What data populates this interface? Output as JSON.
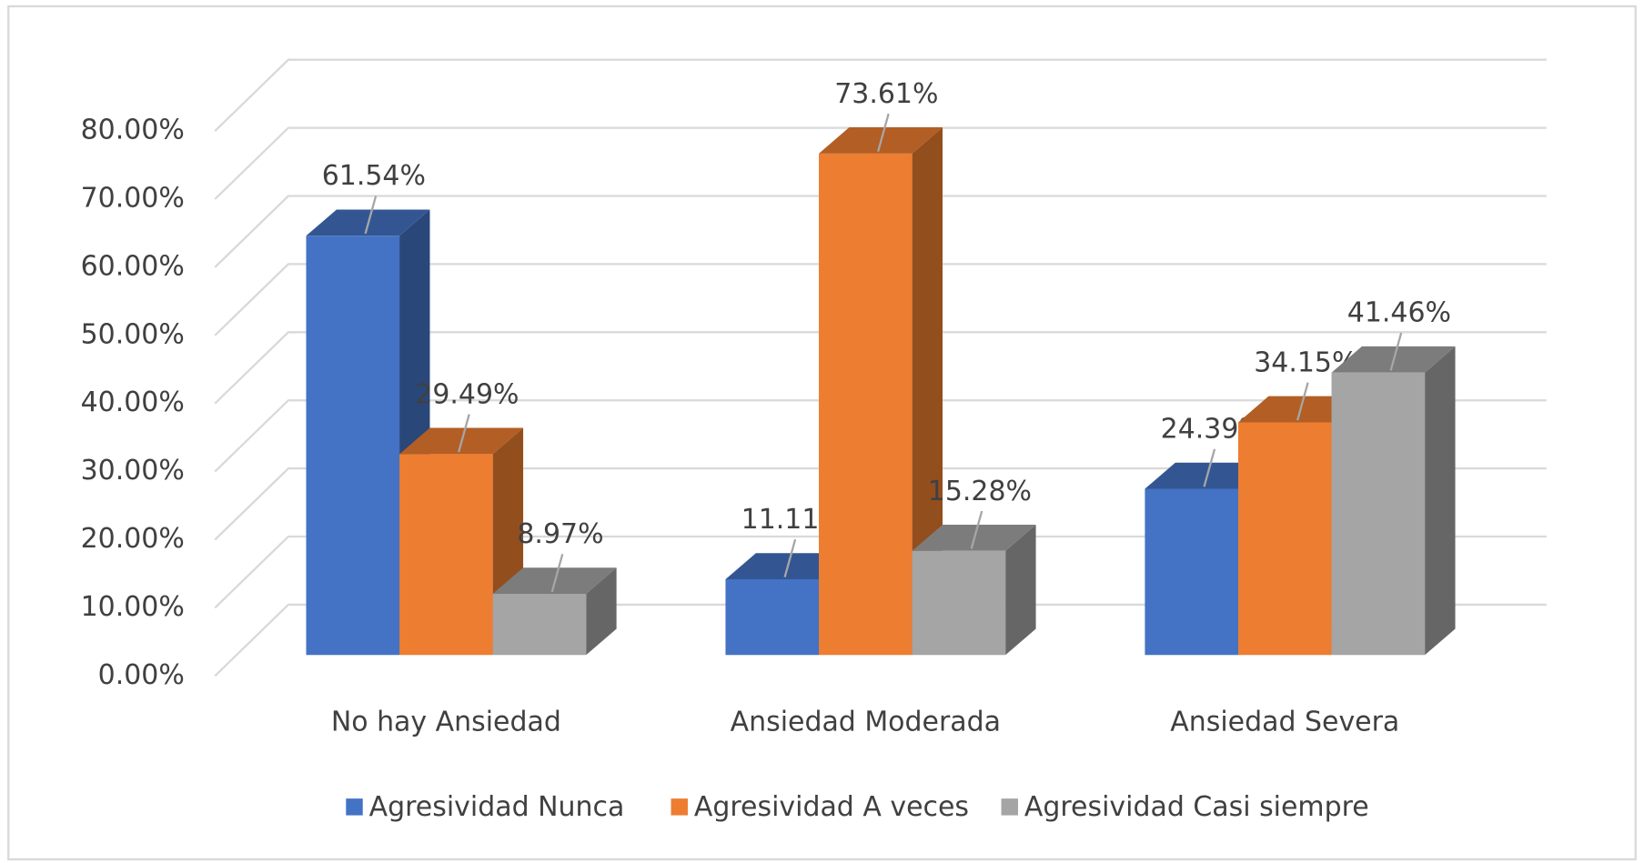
{
  "chart_data": {
    "type": "bar3d",
    "categories": [
      "No hay Ansiedad",
      "Ansiedad Moderada",
      "Ansiedad Severa"
    ],
    "series": [
      {
        "name": "Agresividad Nunca",
        "color": "#4472c4",
        "values": [
          61.54,
          11.11,
          24.39
        ],
        "value_labels": [
          "61.54%",
          "11.11%",
          "24.39%"
        ]
      },
      {
        "name": "Agresividad A veces",
        "color": "#ed7d31",
        "values": [
          29.49,
          73.61,
          34.15
        ],
        "value_labels": [
          "29.49%",
          "73.61%",
          "34.15%"
        ]
      },
      {
        "name": "Agresividad Casi siempre",
        "color": "#a5a5a5",
        "values": [
          8.97,
          15.28,
          41.46
        ],
        "value_labels": [
          "8.97%",
          "15.28%",
          "41.46%"
        ]
      }
    ],
    "ylim": [
      0,
      80
    ],
    "yticks": [
      {
        "value": 0,
        "label": "0.00%"
      },
      {
        "value": 10,
        "label": "10.00%"
      },
      {
        "value": 20,
        "label": "20.00%"
      },
      {
        "value": 30,
        "label": "30.00%"
      },
      {
        "value": 40,
        "label": "40.00%"
      },
      {
        "value": 50,
        "label": "50.00%"
      },
      {
        "value": 60,
        "label": "60.00%"
      },
      {
        "value": 70,
        "label": "70.00%"
      },
      {
        "value": 80,
        "label": "80.00%"
      }
    ],
    "grid": true,
    "legend": "bottom"
  }
}
